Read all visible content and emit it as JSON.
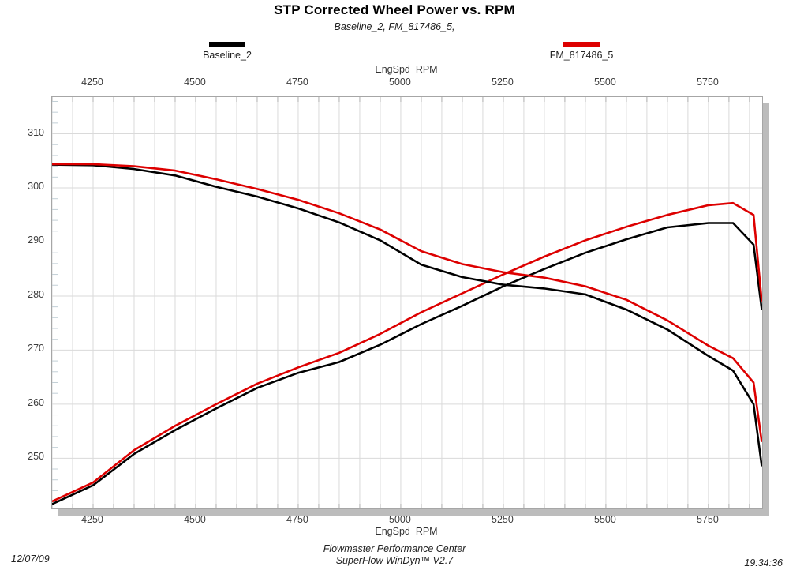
{
  "header": {
    "title": "STP Corrected Wheel Power vs. RPM",
    "subtitle": "Baseline_2, FM_817486_5,"
  },
  "legend": [
    {
      "label": "Baseline_2",
      "color": "#000000"
    },
    {
      "label": "FM_817486_5",
      "color": "#dd0000"
    }
  ],
  "axes": {
    "x_label_top": "EngSpd  RPM",
    "x_label_bottom": "EngSpd  RPM",
    "x_ticks": [
      4250,
      4500,
      4750,
      5000,
      5250,
      5500,
      5750
    ],
    "x_min": 4150,
    "x_max": 5881,
    "x_grid_step": 50,
    "y_ticks": [
      310,
      300,
      290,
      280,
      270,
      260,
      250
    ],
    "y_minor_step": 2,
    "y_min": 240.7,
    "y_max": 316.8
  },
  "colors": {
    "grid": "#dadada",
    "minor_tick": "#c2cfd6",
    "edge_tick": "#b0b0b0",
    "frame": "#a6a6a6",
    "shadow": "#bcbcbc"
  },
  "footer": {
    "date": "12/07/09",
    "center_line1": "Flowmaster Performance Center",
    "center_line2": "SuperFlow WinDyn™ V2.7",
    "time": "19:34:36"
  },
  "chart_data": {
    "type": "line",
    "title": "STP Corrected Wheel Power vs. RPM",
    "xlabel": "EngSpd RPM",
    "ylabel": "",
    "xlim": [
      4150,
      5881
    ],
    "ylim": [
      240.7,
      316.8
    ],
    "grid": true,
    "legend_position": "top",
    "x_rpm": [
      4150,
      4250,
      4350,
      4450,
      4550,
      4650,
      4750,
      4850,
      4950,
      5050,
      5150,
      5250,
      5350,
      5450,
      5550,
      5650,
      5750,
      5810,
      5860,
      5880
    ],
    "series": [
      {
        "name": "Baseline_2 (rising power trace)",
        "color": "#000000",
        "values": [
          241.5,
          245.0,
          250.8,
          255.2,
          259.2,
          263.0,
          265.8,
          267.8,
          271.0,
          274.8,
          278.2,
          281.8,
          285.0,
          288.0,
          290.5,
          292.7,
          293.5,
          293.5,
          289.5,
          277.5
        ]
      },
      {
        "name": "FM_817486_5 (rising power trace)",
        "color": "#dd0000",
        "values": [
          242.0,
          245.5,
          251.5,
          256.0,
          260.0,
          263.8,
          266.8,
          269.5,
          273.0,
          277.0,
          280.5,
          284.0,
          287.3,
          290.3,
          292.8,
          295.0,
          296.8,
          297.2,
          295.0,
          279.0
        ]
      },
      {
        "name": "Baseline_2 (falling torque trace)",
        "color": "#000000",
        "values": [
          304.3,
          304.2,
          303.5,
          302.3,
          300.2,
          298.4,
          296.2,
          293.6,
          290.3,
          285.8,
          283.5,
          282.1,
          281.4,
          280.3,
          277.5,
          273.8,
          268.9,
          266.2,
          260.0,
          248.5
        ]
      },
      {
        "name": "FM_817486_5 (falling torque trace)",
        "color": "#dd0000",
        "values": [
          304.4,
          304.4,
          304.0,
          303.2,
          301.6,
          299.8,
          297.8,
          295.3,
          292.3,
          288.3,
          285.9,
          284.4,
          283.4,
          281.8,
          279.3,
          275.5,
          270.8,
          268.5,
          264.0,
          253.0
        ]
      }
    ]
  }
}
